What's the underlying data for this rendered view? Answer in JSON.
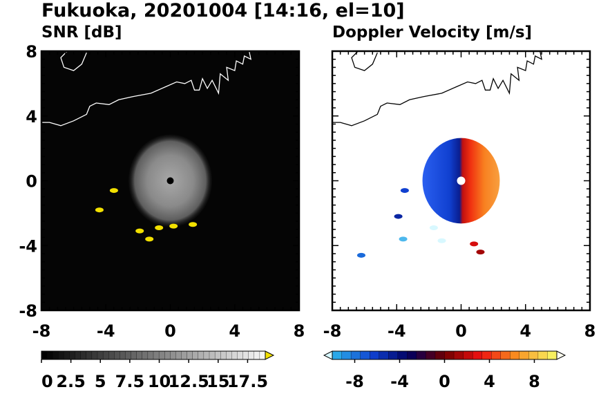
{
  "title": "Fukuoka, 20201004 [14:16, el=10]",
  "chart_data": [
    {
      "type": "heatmap",
      "title": "SNR [dB]",
      "xlim": [
        -8,
        8
      ],
      "ylim": [
        -8,
        8
      ],
      "x_ticks": [
        "-8",
        "-4",
        "0",
        "4",
        "8"
      ],
      "y_ticks": [
        "-8",
        "-4",
        "0",
        "4",
        "8"
      ],
      "x_tick_values": [
        -8,
        -4,
        0,
        4,
        8
      ],
      "y_tick_values": [
        -8,
        -4,
        0,
        4,
        8
      ],
      "background_color": "#050505",
      "echo_center": [
        0,
        0
      ],
      "echo_radius": 2.6,
      "colorbar": {
        "min": 0,
        "max": 19,
        "extend": "max",
        "ticks": [
          "0",
          "2.5",
          "5",
          "7.5",
          "10",
          "12.5",
          "15",
          "17.5"
        ],
        "tick_values": [
          0,
          2.5,
          5,
          7.5,
          10,
          12.5,
          15,
          17.5
        ],
        "colors": [
          "#000000",
          "#f5f5f5",
          "#f2e000"
        ]
      },
      "high_snr_clusters": [
        {
          "x": -3.5,
          "y": -0.6,
          "value": 19
        },
        {
          "x": -4.4,
          "y": -1.8,
          "value": 19
        },
        {
          "x": -1.9,
          "y": -3.1,
          "value": 19
        },
        {
          "x": -1.3,
          "y": -3.6,
          "value": 19
        },
        {
          "x": -0.7,
          "y": -2.9,
          "value": 19
        },
        {
          "x": 0.2,
          "y": -2.8,
          "value": 19
        },
        {
          "x": 1.4,
          "y": -2.7,
          "value": 19
        }
      ]
    },
    {
      "type": "heatmap",
      "title": "Doppler Velocity [m/s]",
      "xlim": [
        -8,
        8
      ],
      "ylim": [
        -8,
        8
      ],
      "x_ticks": [
        "-8",
        "-4",
        "0",
        "4",
        "8"
      ],
      "y_ticks": [
        "-8",
        "-4",
        "0",
        "4",
        "8"
      ],
      "x_tick_values": [
        -8,
        -4,
        0,
        4,
        8
      ],
      "y_tick_values": [
        -8,
        -4,
        0,
        4,
        8
      ],
      "background_color": "#ffffff",
      "echo_center": [
        0,
        0
      ],
      "echo_radius": 2.4,
      "velocity_pattern": {
        "receding_side": "east",
        "approaching_side": "west",
        "max_abs_velocity": 10
      },
      "colorbar": {
        "min": -10,
        "max": 10,
        "extend": "both",
        "ticks": [
          "-8",
          "-4",
          "0",
          "4",
          "8"
        ],
        "tick_values": [
          -8,
          -4,
          0,
          4,
          8
        ],
        "colors": [
          "#d8f8ff",
          "#2aa8e8",
          "#1040d0",
          "#000060",
          "#700000",
          "#f01010",
          "#f89020",
          "#f8f060",
          "#fffff0"
        ]
      },
      "velocity_clusters": [
        {
          "x": -3.5,
          "y": -0.6,
          "value": -5
        },
        {
          "x": -3.9,
          "y": -2.2,
          "value": -4
        },
        {
          "x": -1.7,
          "y": -2.9,
          "value": -10
        },
        {
          "x": -1.2,
          "y": -3.7,
          "value": -10
        },
        {
          "x": 1.2,
          "y": -4.4,
          "value": 1
        },
        {
          "x": 0.8,
          "y": -3.9,
          "value": 2
        },
        {
          "x": -6.2,
          "y": -4.6,
          "value": -6
        },
        {
          "x": -3.6,
          "y": -3.6,
          "value": -8
        }
      ]
    }
  ]
}
